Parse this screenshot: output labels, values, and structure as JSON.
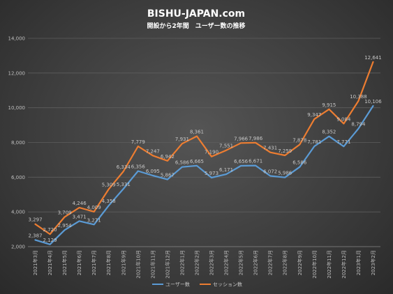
{
  "chart_data": {
    "type": "line",
    "title": "BISHU-JAPAN.com",
    "subtitle": "開設から2年間　ユーザー数の推移",
    "categories": [
      "2021年3月",
      "2021年4月",
      "2021年5月",
      "2021年6月",
      "2021年7月",
      "2021年8月",
      "2021年9月",
      "2021年10月",
      "2021年11月",
      "2021年12月",
      "2022年1月",
      "2022年2月",
      "2022年3月",
      "2022年4月",
      "2022年5月",
      "2022年6月",
      "2022年7月",
      "2022年8月",
      "2022年9月",
      "2022年10月",
      "2022年11月",
      "2022年12月",
      "2023年1月",
      "2023年2月"
    ],
    "series": [
      {
        "name": "ユーザー数",
        "color": "#5b9bd5",
        "values": [
          2387,
          2129,
          2954,
          3471,
          3271,
          4358,
          5331,
          6356,
          6095,
          5867,
          6586,
          6665,
          5973,
          6171,
          6656,
          6671,
          6072,
          5986,
          6586,
          7781,
          8352,
          7771,
          8794,
          10106
        ],
        "labels": [
          "2,387",
          "2,129",
          "2,954",
          "3,471",
          "3,271",
          "4,358",
          "5,331",
          "6,356",
          "6,095",
          "5,867",
          "6,586",
          "6,665",
          "5,973",
          "6,171",
          "6,656",
          "6,671",
          "6,072",
          "5,986",
          "6,586",
          "7,781",
          "8,352",
          "7,771",
          "8,794",
          "10,106"
        ]
      },
      {
        "name": "セッション数",
        "color": "#ed7d31",
        "values": [
          3297,
          2720,
          3709,
          4246,
          4009,
          5309,
          6334,
          7779,
          7247,
          6942,
          7931,
          8361,
          7190,
          7551,
          7966,
          7986,
          7431,
          7259,
          7878,
          9347,
          9915,
          9084,
          10388,
          12641
        ],
        "labels": [
          "3,297",
          "2,720",
          "3,709",
          "4,246",
          "4,009",
          "5,309",
          "6,334",
          "7,779",
          "7,247",
          "6,942",
          "7,931",
          "8,361",
          "7,190",
          "7,551",
          "7,966",
          "7,986",
          "7,431",
          "7,259",
          "7,878",
          "9,347",
          "9,915",
          "9,084",
          "10,388",
          "12,641"
        ]
      }
    ],
    "yticks": [
      "2,000",
      "4,000",
      "6,000",
      "8,000",
      "10,000",
      "12,000",
      "14,000"
    ],
    "ylim": [
      2000,
      14000
    ],
    "grid": true,
    "legend": "bottom"
  }
}
